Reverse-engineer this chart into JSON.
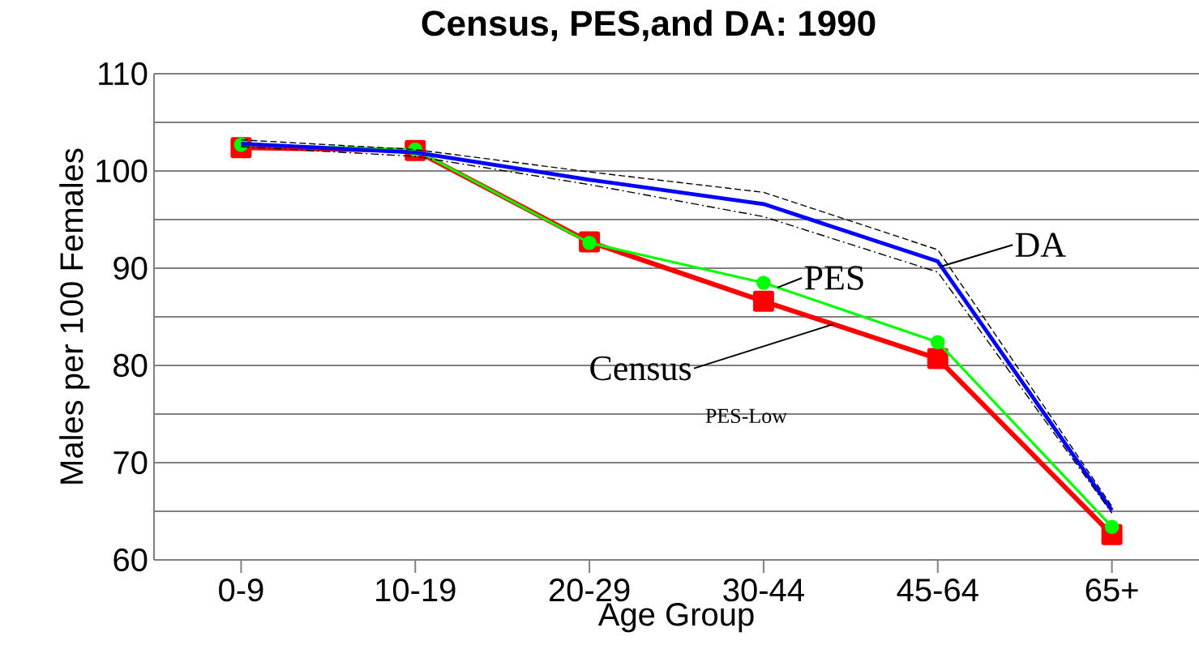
{
  "chart_data": {
    "type": "line",
    "title": "Census, PES,and DA: 1990",
    "xlabel": "Age Group",
    "ylabel": "Males per 100 Females",
    "categories": [
      "0-9",
      "10-19",
      "20-29",
      "30-44",
      "45-64",
      "65+"
    ],
    "series": [
      {
        "name": "Census",
        "color": "#ff0000",
        "marker": "square",
        "line_style": "solid",
        "values": [
          102.4,
          102.1,
          92.7,
          86.6,
          80.7,
          62.6
        ]
      },
      {
        "name": "PES",
        "color": "#00ff00",
        "marker": "circle",
        "line_style": "solid",
        "values": [
          102.7,
          102.2,
          92.6,
          88.5,
          82.4,
          63.4
        ]
      },
      {
        "name": "DA",
        "color": "#0000ff",
        "marker": "none",
        "line_style": "solid",
        "values": [
          102.8,
          101.9,
          99.1,
          96.6,
          90.7,
          65.1
        ]
      },
      {
        "color": "#000000",
        "marker": "none",
        "line_style": "dashed",
        "values": [
          103.2,
          102.2,
          99.9,
          97.8,
          91.9,
          65.5
        ]
      },
      {
        "color": "#000000",
        "marker": "none",
        "line_style": "dashdot",
        "values": [
          102.5,
          101.5,
          98.6,
          95.3,
          89.6,
          64.8
        ]
      }
    ],
    "annotations": [
      "PES-Low"
    ],
    "ylim": [
      60,
      110
    ],
    "yticks": [
      60,
      {
        "value": 65,
        "label": null
      },
      70,
      {
        "value": 75,
        "label": null
      },
      80,
      {
        "value": 85,
        "label": null
      },
      90,
      {
        "value": 95,
        "label": null
      },
      100,
      {
        "value": 105,
        "label": null
      },
      110
    ],
    "grid": "y",
    "legend": false
  }
}
